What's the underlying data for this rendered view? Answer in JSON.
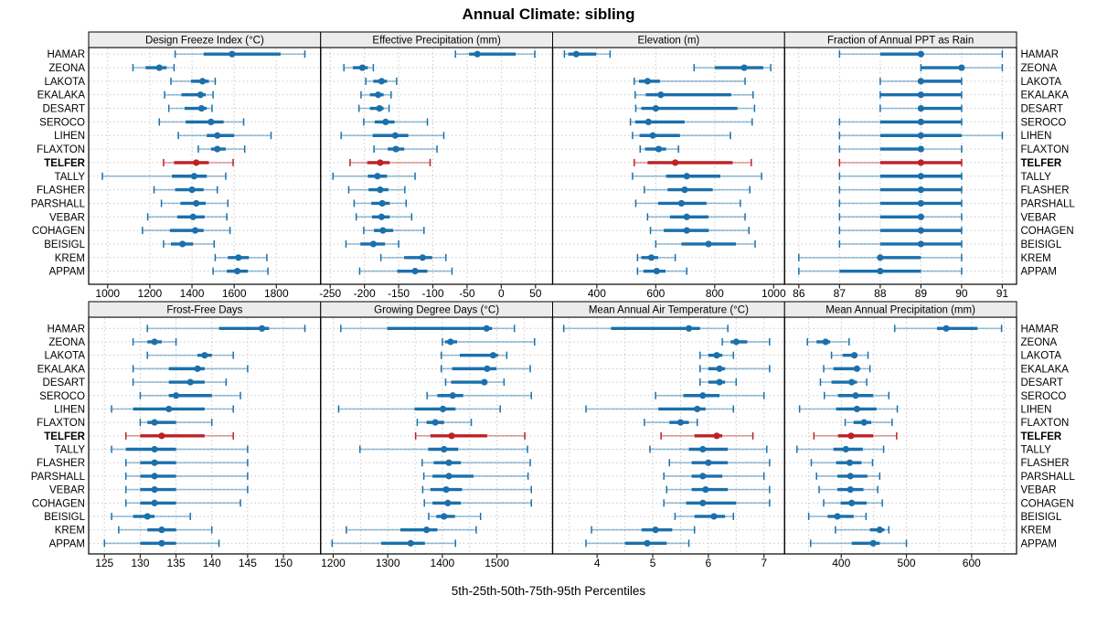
{
  "title": "Annual Climate: sibling",
  "footer": "5th-25th-50th-75th-95th Percentiles",
  "highlight_station": "TELFER",
  "stations": [
    "HAMAR",
    "ZEONA",
    "LAKOTA",
    "EKALAKA",
    "DESART",
    "SEROCO",
    "LIHEN",
    "FLAXTON",
    "TELFER",
    "TALLY",
    "FLASHER",
    "PARSHALL",
    "VEBAR",
    "COHAGEN",
    "BEISIGL",
    "KREM",
    "APPAM"
  ],
  "colors": {
    "blue": "#1b70ab",
    "blue_light": "rgba(27,112,171,0.42)",
    "red": "#bc2126",
    "red_light": "rgba(188,33,38,0.42)",
    "grid": "#c9c9c9",
    "strip_bg": "#ececec",
    "border": "#000000",
    "tick": "#222222"
  },
  "chart_data": {
    "type": "percentile-dotplot",
    "percentiles": [
      "5th",
      "25th",
      "50th",
      "75th",
      "95th"
    ],
    "panels": [
      {
        "title": "Design Freeze Index (°C)",
        "row": 0,
        "col": 0,
        "xlim": [
          910,
          2010
        ],
        "ticks": [
          1000,
          1200,
          1400,
          1600,
          1800
        ],
        "grid": [
          1000,
          1200,
          1400,
          1600,
          1800
        ],
        "series": [
          [
            1320,
            1455,
            1590,
            1820,
            1935
          ],
          [
            1120,
            1180,
            1245,
            1280,
            1315
          ],
          [
            1300,
            1395,
            1450,
            1480,
            1510
          ],
          [
            1270,
            1350,
            1440,
            1465,
            1500
          ],
          [
            1290,
            1365,
            1445,
            1470,
            1495
          ],
          [
            1245,
            1370,
            1490,
            1550,
            1645
          ],
          [
            1335,
            1470,
            1520,
            1600,
            1775
          ],
          [
            1430,
            1490,
            1520,
            1560,
            1650
          ],
          [
            1265,
            1315,
            1420,
            1480,
            1595
          ],
          [
            975,
            1305,
            1410,
            1470,
            1560
          ],
          [
            1220,
            1320,
            1400,
            1455,
            1520
          ],
          [
            1255,
            1345,
            1420,
            1465,
            1570
          ],
          [
            1190,
            1330,
            1405,
            1460,
            1565
          ],
          [
            1165,
            1295,
            1415,
            1455,
            1580
          ],
          [
            1265,
            1300,
            1355,
            1405,
            1505
          ],
          [
            1510,
            1570,
            1620,
            1670,
            1755
          ],
          [
            1500,
            1565,
            1615,
            1665,
            1760
          ]
        ]
      },
      {
        "title": "Effective Precipitation (mm)",
        "row": 0,
        "col": 1,
        "xlim": [
          -264,
          75
        ],
        "ticks": [
          -250,
          -200,
          -150,
          -100,
          -50,
          0,
          50
        ],
        "grid": [
          -250,
          -200,
          -150,
          -100,
          -50,
          0,
          50
        ],
        "series": [
          [
            -67,
            -47,
            -35,
            21,
            49
          ],
          [
            -230,
            -217,
            -203,
            -195,
            -187
          ],
          [
            -198,
            -187,
            -175,
            -167,
            -153
          ],
          [
            -205,
            -192,
            -180,
            -172,
            -161
          ],
          [
            -208,
            -192,
            -178,
            -172,
            -164
          ],
          [
            -201,
            -185,
            -169,
            -156,
            -108
          ],
          [
            -234,
            -188,
            -155,
            -136,
            -84
          ],
          [
            -186,
            -166,
            -154,
            -142,
            -94
          ],
          [
            -221,
            -196,
            -177,
            -163,
            -104
          ],
          [
            -246,
            -195,
            -181,
            -167,
            -126
          ],
          [
            -223,
            -194,
            -177,
            -165,
            -141
          ],
          [
            -215,
            -190,
            -174,
            -163,
            -139
          ],
          [
            -212,
            -189,
            -175,
            -163,
            -131
          ],
          [
            -201,
            -186,
            -173,
            -158,
            -113
          ],
          [
            -227,
            -206,
            -187,
            -170,
            -150
          ],
          [
            -176,
            -142,
            -115,
            -101,
            -81
          ],
          [
            -207,
            -152,
            -126,
            -108,
            -72
          ]
        ]
      },
      {
        "title": "Elevation (m)",
        "row": 0,
        "col": 2,
        "xlim": [
          250,
          1037
        ],
        "ticks": [
          400,
          600,
          800,
          1000
        ],
        "grid": [
          400,
          600,
          800,
          1000
        ],
        "series": [
          [
            290,
            303,
            330,
            398,
            445
          ],
          [
            730,
            800,
            900,
            965,
            990
          ],
          [
            527,
            543,
            572,
            614,
            903
          ],
          [
            530,
            566,
            617,
            856,
            930
          ],
          [
            532,
            551,
            600,
            877,
            935
          ],
          [
            514,
            530,
            575,
            698,
            927
          ],
          [
            521,
            545,
            590,
            682,
            853
          ],
          [
            547,
            564,
            610,
            635,
            677
          ],
          [
            527,
            572,
            666,
            861,
            924
          ],
          [
            521,
            635,
            705,
            819,
            959
          ],
          [
            561,
            640,
            698,
            793,
            919
          ],
          [
            532,
            608,
            687,
            772,
            887
          ],
          [
            572,
            648,
            705,
            779,
            903
          ],
          [
            582,
            627,
            705,
            780,
            916
          ],
          [
            600,
            687,
            779,
            872,
            937
          ],
          [
            538,
            551,
            585,
            608,
            666
          ],
          [
            538,
            558,
            603,
            633,
            705
          ]
        ]
      },
      {
        "title": "Fraction of Annual PPT as Rain",
        "row": 0,
        "col": 3,
        "xlim": [
          85.65,
          91.35
        ],
        "ticks": [
          86,
          87,
          88,
          89,
          90,
          91
        ],
        "grid": [
          86,
          87,
          88,
          89,
          90,
          91
        ],
        "series": [
          [
            87,
            88,
            89,
            89,
            91
          ],
          [
            89,
            89,
            90,
            90,
            91
          ],
          [
            88,
            89,
            89,
            90,
            90
          ],
          [
            88,
            88,
            89,
            90,
            90
          ],
          [
            88,
            89,
            89,
            90,
            90
          ],
          [
            87,
            88,
            89,
            90,
            90
          ],
          [
            87,
            88,
            89,
            90,
            91
          ],
          [
            87,
            88,
            89,
            89,
            90
          ],
          [
            87,
            88,
            89,
            90,
            90
          ],
          [
            87,
            88,
            89,
            90,
            90
          ],
          [
            87,
            88,
            89,
            90,
            90
          ],
          [
            87,
            88,
            89,
            90,
            90
          ],
          [
            87,
            88,
            89,
            89,
            90
          ],
          [
            87,
            88,
            89,
            90,
            90
          ],
          [
            87,
            88,
            89,
            90,
            90
          ],
          [
            86,
            88,
            88,
            89,
            90
          ],
          [
            86,
            87,
            88,
            89,
            90
          ]
        ]
      },
      {
        "title": "Frost-Free Days",
        "row": 1,
        "col": 0,
        "xlim": [
          122.8,
          155.2
        ],
        "ticks": [
          125,
          130,
          135,
          140,
          145,
          150
        ],
        "grid": [
          125,
          130,
          135,
          140,
          145,
          150
        ],
        "series": [
          [
            131,
            141,
            147,
            148,
            153
          ],
          [
            129,
            131,
            132,
            133,
            135
          ],
          [
            131,
            138,
            139,
            140,
            143
          ],
          [
            129,
            134,
            138,
            139,
            145
          ],
          [
            129,
            134,
            137,
            139,
            142
          ],
          [
            130,
            134,
            135,
            140,
            144
          ],
          [
            126,
            129,
            134,
            139,
            143
          ],
          [
            130,
            131,
            132,
            135,
            140
          ],
          [
            128,
            130,
            133,
            139,
            143
          ],
          [
            126,
            128,
            132,
            135,
            145
          ],
          [
            128,
            130,
            132,
            135,
            145
          ],
          [
            128,
            130,
            132,
            135,
            145
          ],
          [
            128,
            130,
            132,
            135,
            145
          ],
          [
            128,
            130,
            132,
            135,
            144
          ],
          [
            126,
            129,
            131,
            132,
            137
          ],
          [
            127,
            131,
            133,
            135,
            140
          ],
          [
            125,
            130,
            133,
            135,
            141
          ]
        ]
      },
      {
        "title": "Growing Degree Days (°C)",
        "row": 1,
        "col": 1,
        "xlim": [
          1177,
          1602
        ],
        "ticks": [
          1200,
          1300,
          1400,
          1500
        ],
        "grid": [
          1200,
          1250,
          1300,
          1350,
          1400,
          1450,
          1500,
          1550,
          1600
        ],
        "series": [
          [
            1214,
            1299,
            1481,
            1491,
            1532
          ],
          [
            1400,
            1405,
            1415,
            1427,
            1569
          ],
          [
            1398,
            1432,
            1493,
            1502,
            1518
          ],
          [
            1398,
            1418,
            1482,
            1499,
            1561
          ],
          [
            1406,
            1416,
            1477,
            1482,
            1513
          ],
          [
            1372,
            1391,
            1419,
            1438,
            1563
          ],
          [
            1210,
            1349,
            1401,
            1424,
            1506
          ],
          [
            1354,
            1371,
            1387,
            1403,
            1453
          ],
          [
            1351,
            1378,
            1417,
            1482,
            1551
          ],
          [
            1249,
            1374,
            1403,
            1429,
            1556
          ],
          [
            1363,
            1384,
            1412,
            1434,
            1561
          ],
          [
            1366,
            1382,
            1412,
            1457,
            1557
          ],
          [
            1364,
            1378,
            1407,
            1436,
            1563
          ],
          [
            1367,
            1382,
            1410,
            1434,
            1563
          ],
          [
            1375,
            1389,
            1403,
            1423,
            1470
          ],
          [
            1224,
            1323,
            1371,
            1391,
            1462
          ],
          [
            1198,
            1288,
            1342,
            1368,
            1424
          ]
        ]
      },
      {
        "title": "Mean Annual Air Temperature (°C)",
        "row": 1,
        "col": 2,
        "xlim": [
          3.2,
          7.37
        ],
        "ticks": [
          4,
          5,
          6,
          7
        ],
        "grid": [
          3.5,
          4,
          4.5,
          5,
          5.5,
          6,
          6.5,
          7
        ],
        "series": [
          [
            3.4,
            4.25,
            5.65,
            5.85,
            6.35
          ],
          [
            6.25,
            6.4,
            6.5,
            6.7,
            7.1
          ],
          [
            5.85,
            6.0,
            6.15,
            6.25,
            6.45
          ],
          [
            5.85,
            6.0,
            6.2,
            6.3,
            7.1
          ],
          [
            5.85,
            6.0,
            6.2,
            6.3,
            6.5
          ],
          [
            5.05,
            5.55,
            5.9,
            6.2,
            7.0
          ],
          [
            3.8,
            5.1,
            5.8,
            5.95,
            6.45
          ],
          [
            4.85,
            5.3,
            5.5,
            5.65,
            5.8
          ],
          [
            5.15,
            5.75,
            6.15,
            6.25,
            6.8
          ],
          [
            4.95,
            5.65,
            5.9,
            6.35,
            7.05
          ],
          [
            5.3,
            5.7,
            6.0,
            6.35,
            7.1
          ],
          [
            5.2,
            5.7,
            5.9,
            6.25,
            7.0
          ],
          [
            5.25,
            5.7,
            5.95,
            6.35,
            7.1
          ],
          [
            5.2,
            5.6,
            5.9,
            6.5,
            7.1
          ],
          [
            5.4,
            5.75,
            6.1,
            6.3,
            6.45
          ],
          [
            3.9,
            4.8,
            5.05,
            5.35,
            5.75
          ],
          [
            3.8,
            4.5,
            4.9,
            5.25,
            5.65
          ]
        ]
      },
      {
        "title": "Mean Annual Precipitation (mm)",
        "row": 1,
        "col": 3,
        "xlim": [
          313,
          669
        ],
        "ticks": [
          400,
          500,
          600
        ],
        "grid": [
          350,
          400,
          450,
          500,
          550,
          600,
          650
        ],
        "series": [
          [
            482,
            547,
            561,
            609,
            646
          ],
          [
            348,
            362,
            376,
            383,
            412
          ],
          [
            385,
            402,
            420,
            425,
            441
          ],
          [
            373,
            388,
            424,
            428,
            444
          ],
          [
            368,
            385,
            416,
            424,
            439
          ],
          [
            374,
            395,
            422,
            449,
            473
          ],
          [
            336,
            392,
            424,
            454,
            486
          ],
          [
            406,
            419,
            435,
            446,
            478
          ],
          [
            358,
            395,
            415,
            449,
            485
          ],
          [
            332,
            388,
            407,
            433,
            465
          ],
          [
            354,
            392,
            413,
            431,
            448
          ],
          [
            362,
            394,
            414,
            440,
            459
          ],
          [
            366,
            394,
            414,
            434,
            456
          ],
          [
            373,
            399,
            416,
            439,
            463
          ],
          [
            350,
            379,
            394,
            419,
            438
          ],
          [
            391,
            444,
            459,
            466,
            473
          ],
          [
            353,
            416,
            449,
            459,
            500
          ]
        ]
      }
    ]
  }
}
